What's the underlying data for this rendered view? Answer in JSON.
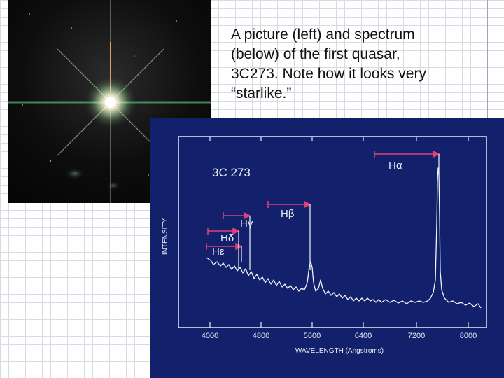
{
  "caption": {
    "line1": "A picture (left) and spectrum",
    "line2": "(below) of the first quasar,",
    "line3": "3C273. Note how it looks very",
    "line4": "“starlike.”"
  },
  "spectrum": {
    "object_label": "3C 273",
    "y_axis_label": "INTENSITY",
    "x_axis_label": "WAVELENGTH (Angstroms)",
    "x_ticks": [
      "4000",
      "4800",
      "5600",
      "6400",
      "7200",
      "8000"
    ],
    "lines": {
      "h_alpha": "Hα",
      "h_beta": "Hβ",
      "h_gamma": "Hγ",
      "h_delta": "Hδ",
      "h_epsilon": "Hε"
    }
  },
  "colors": {
    "spectrum_bg": "#13206b",
    "marker": "#e0407a",
    "trace": "#f2f4fa"
  }
}
